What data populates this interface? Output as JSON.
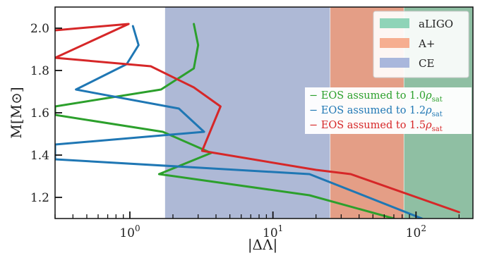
{
  "chart_data": {
    "type": "line",
    "xlabel": "|ΔΛ|",
    "ylabel": "M[M⊙]",
    "xscale": "log",
    "xlim": [
      0.3,
      250
    ],
    "ylim": [
      1.1,
      2.1
    ],
    "x_ticks": [
      1,
      10,
      100
    ],
    "x_tick_labels": [
      "10^0",
      "10^1",
      "10^2"
    ],
    "y_ticks": [
      1.2,
      1.4,
      1.6,
      1.8,
      2.0
    ],
    "y_tick_labels": [
      "1.2",
      "1.4",
      "1.6",
      "1.8",
      "2.0"
    ],
    "grid": false,
    "bands": [
      {
        "name": "aLIGO",
        "x_from": 82,
        "x_to": 250,
        "color": "#8fbfa3"
      },
      {
        "name": "A+",
        "x_from": 25,
        "x_to": 82,
        "color": "#e49e86"
      },
      {
        "name": "CE",
        "x_from": 1.75,
        "x_to": 25,
        "color": "#aeb9d6"
      }
    ],
    "legend": {
      "placement": "top-right",
      "entries": [
        {
          "label": "aLIGO",
          "color": "#8fd4b8"
        },
        {
          "label": "A+",
          "color": "#f6ae90"
        },
        {
          "label": "CE",
          "color": "#a9b7dc"
        }
      ]
    },
    "series": [
      {
        "name": "EOS assumed to 1.0ρsat",
        "color": "#2ca02c",
        "points": [
          [
            2.8,
            2.02
          ],
          [
            3.0,
            1.92
          ],
          [
            2.8,
            1.81
          ],
          [
            1.65,
            1.71
          ],
          [
            0.3,
            1.63
          ],
          [
            0.3,
            1.59
          ],
          [
            1.7,
            1.51
          ],
          [
            3.7,
            1.41
          ],
          [
            1.6,
            1.31
          ],
          [
            18,
            1.21
          ],
          [
            70,
            1.1
          ]
        ]
      },
      {
        "name": "EOS assumed to 1.2ρsat",
        "color": "#1f77b4",
        "points": [
          [
            1.05,
            2.01
          ],
          [
            1.15,
            1.92
          ],
          [
            0.95,
            1.83
          ],
          [
            0.42,
            1.71
          ],
          [
            2.2,
            1.62
          ],
          [
            3.3,
            1.51
          ],
          [
            0.3,
            1.45
          ],
          [
            0.3,
            1.38
          ],
          [
            18,
            1.31
          ],
          [
            110,
            1.1
          ]
        ]
      },
      {
        "name": "EOS assumed to 1.5ρsat",
        "color": "#d62728",
        "points": [
          [
            0.3,
            1.99
          ],
          [
            0.98,
            2.02
          ],
          [
            0.3,
            1.86
          ],
          [
            1.4,
            1.82
          ],
          [
            2.8,
            1.72
          ],
          [
            4.3,
            1.63
          ],
          [
            3.2,
            1.42
          ],
          [
            20,
            1.33
          ],
          [
            35,
            1.31
          ],
          [
            200,
            1.13
          ]
        ]
      }
    ],
    "annotations": [
      {
        "prefix": "−",
        "label": "EOS assumed to 1.0ρsat",
        "color": "#2ca02c"
      },
      {
        "prefix": "−",
        "label": "EOS assumed to 1.2ρsat",
        "color": "#1f77b4"
      },
      {
        "prefix": "−",
        "label": "EOS assumed to 1.5ρsat",
        "color": "#d62728"
      }
    ]
  }
}
